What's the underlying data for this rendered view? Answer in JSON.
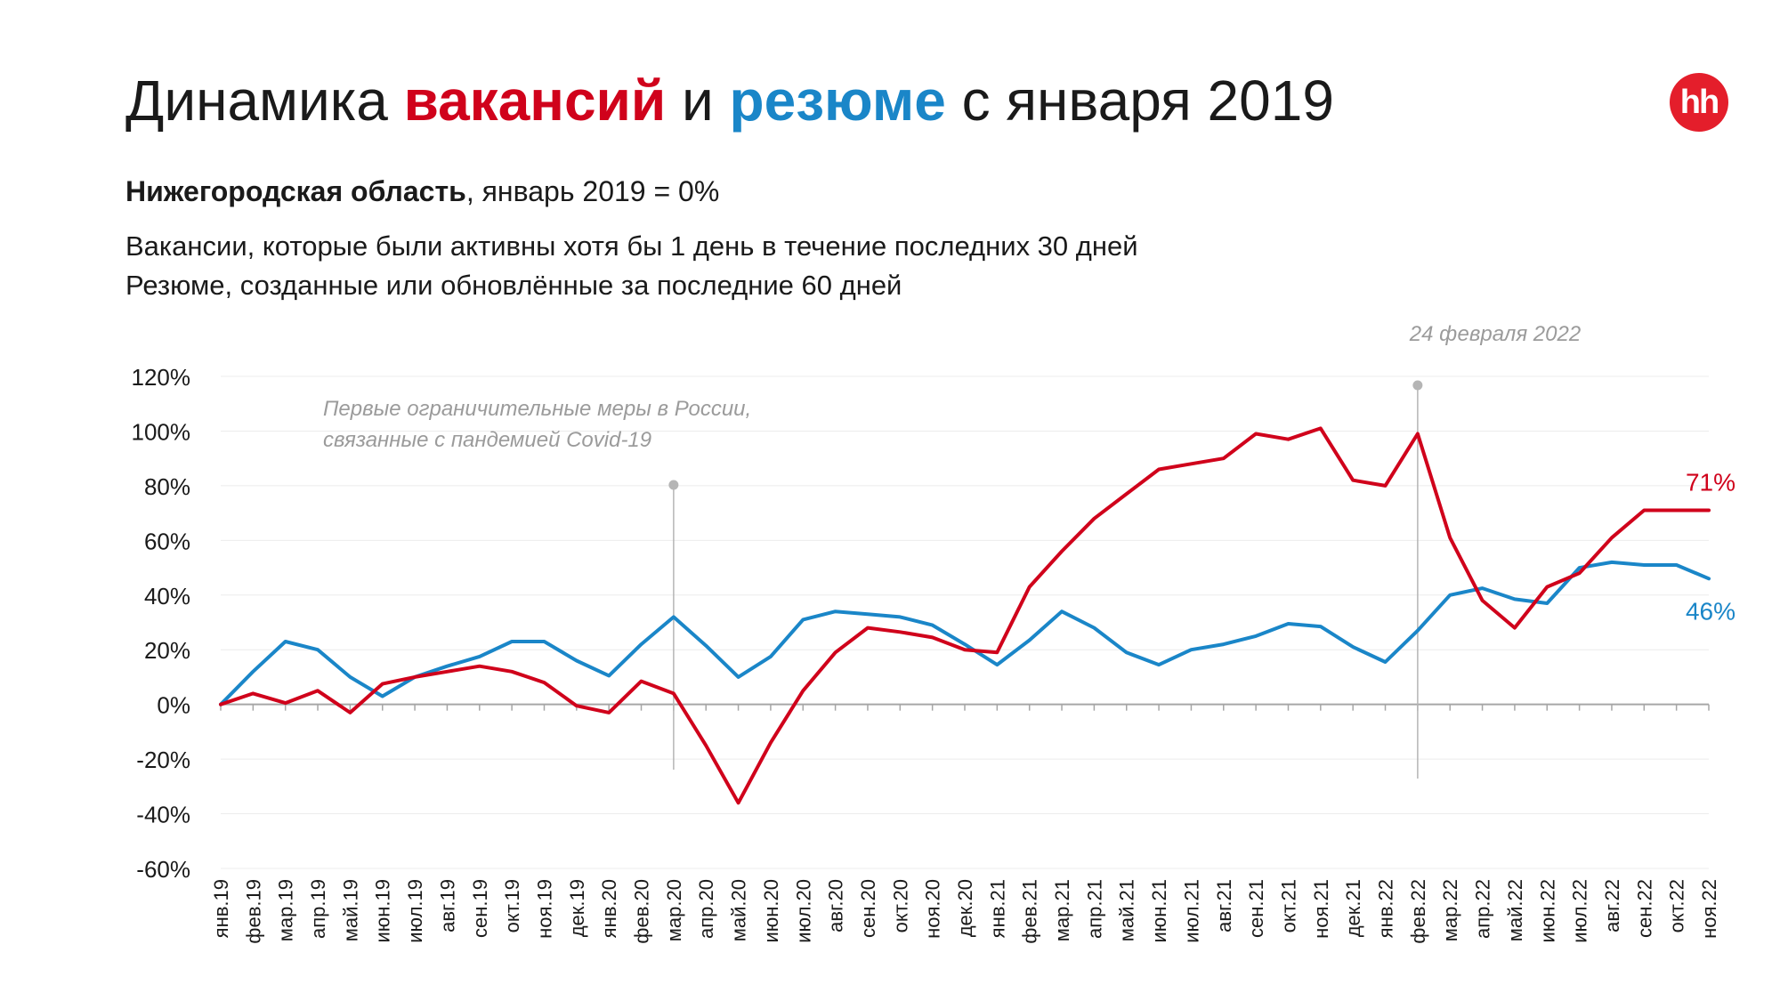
{
  "header": {
    "title_pre": "Динамика ",
    "title_vac": "вакансий",
    "title_mid": " и ",
    "title_res": "резюме",
    "title_post": " с января 2019",
    "subtitle_bold": "Нижегородская область",
    "subtitle_rest": ", январь 2019 = 0%",
    "desc_line1": "Вакансии, которые были активны хотя бы 1 день в течение последних 30 дней",
    "desc_line2": "Резюме, созданные или обновлённые за последние 60 дней",
    "logo_text": "hh"
  },
  "colors": {
    "vacancies": "#d0021b",
    "resumes": "#1a86c8",
    "logo": "#e41e2b",
    "annotation": "#9b9b9b"
  },
  "chart_data": {
    "type": "line",
    "categories": [
      "янв.19",
      "фев.19",
      "мар.19",
      "апр.19",
      "май.19",
      "июн.19",
      "июл.19",
      "авг.19",
      "сен.19",
      "окт.19",
      "ноя.19",
      "дек.19",
      "янв.20",
      "фев.20",
      "мар.20",
      "апр.20",
      "май.20",
      "июн.20",
      "июл.20",
      "авг.20",
      "сен.20",
      "окт.20",
      "ноя.20",
      "дек.20",
      "янв.21",
      "фев.21",
      "мар.21",
      "апр.21",
      "май.21",
      "июн.21",
      "июл.21",
      "авг.21",
      "сен.21",
      "окт.21",
      "ноя.21",
      "дек.21",
      "янв.22",
      "фев.22",
      "мар.22",
      "апр.22",
      "май.22",
      "июн.22",
      "июл.22",
      "авг.22",
      "сен.22",
      "окт.22",
      "ноя.22"
    ],
    "series": [
      {
        "key": "vacancies",
        "values": [
          0,
          4,
          0.5,
          5,
          -3,
          7.5,
          10,
          12,
          14,
          12,
          8,
          -0.5,
          -3,
          8.5,
          4,
          -15,
          -36,
          -14,
          5,
          19,
          28,
          26.5,
          24.5,
          20,
          19,
          43,
          56,
          68,
          77,
          86,
          88,
          90,
          99,
          97,
          101,
          82,
          80,
          99,
          61,
          38,
          28,
          43,
          48,
          61,
          71,
          71,
          71
        ],
        "end_label": "71%"
      },
      {
        "key": "resumes",
        "values": [
          0,
          12,
          23,
          20,
          10,
          3,
          10,
          14,
          17.5,
          23,
          23,
          16,
          10.5,
          22,
          32,
          21.5,
          10,
          17.5,
          31,
          34,
          33,
          32,
          29,
          22,
          14.5,
          23.5,
          34,
          28,
          19,
          14.5,
          20,
          22,
          25,
          29.5,
          28.5,
          21,
          15.5,
          27,
          40,
          42.5,
          38.5,
          37,
          50,
          52,
          51,
          51,
          46
        ],
        "end_label": "46%"
      }
    ],
    "ylim": [
      -60,
      120
    ],
    "yticks": [
      -60,
      -40,
      -20,
      0,
      20,
      40,
      60,
      80,
      100,
      120
    ],
    "ytick_labels": [
      "-60%",
      "-40%",
      "-20%",
      "0%",
      "20%",
      "40%",
      "60%",
      "80%",
      "100%",
      "120%"
    ],
    "grid": true,
    "annotations": [
      {
        "key": "covid",
        "category_index": 14,
        "label_line1": "Первые ограничительные меры в России,",
        "label_line2": "связанные с пандемией Covid-19"
      },
      {
        "key": "feb24",
        "category_index": 37,
        "label_line1": "24 февраля 2022"
      }
    ]
  }
}
